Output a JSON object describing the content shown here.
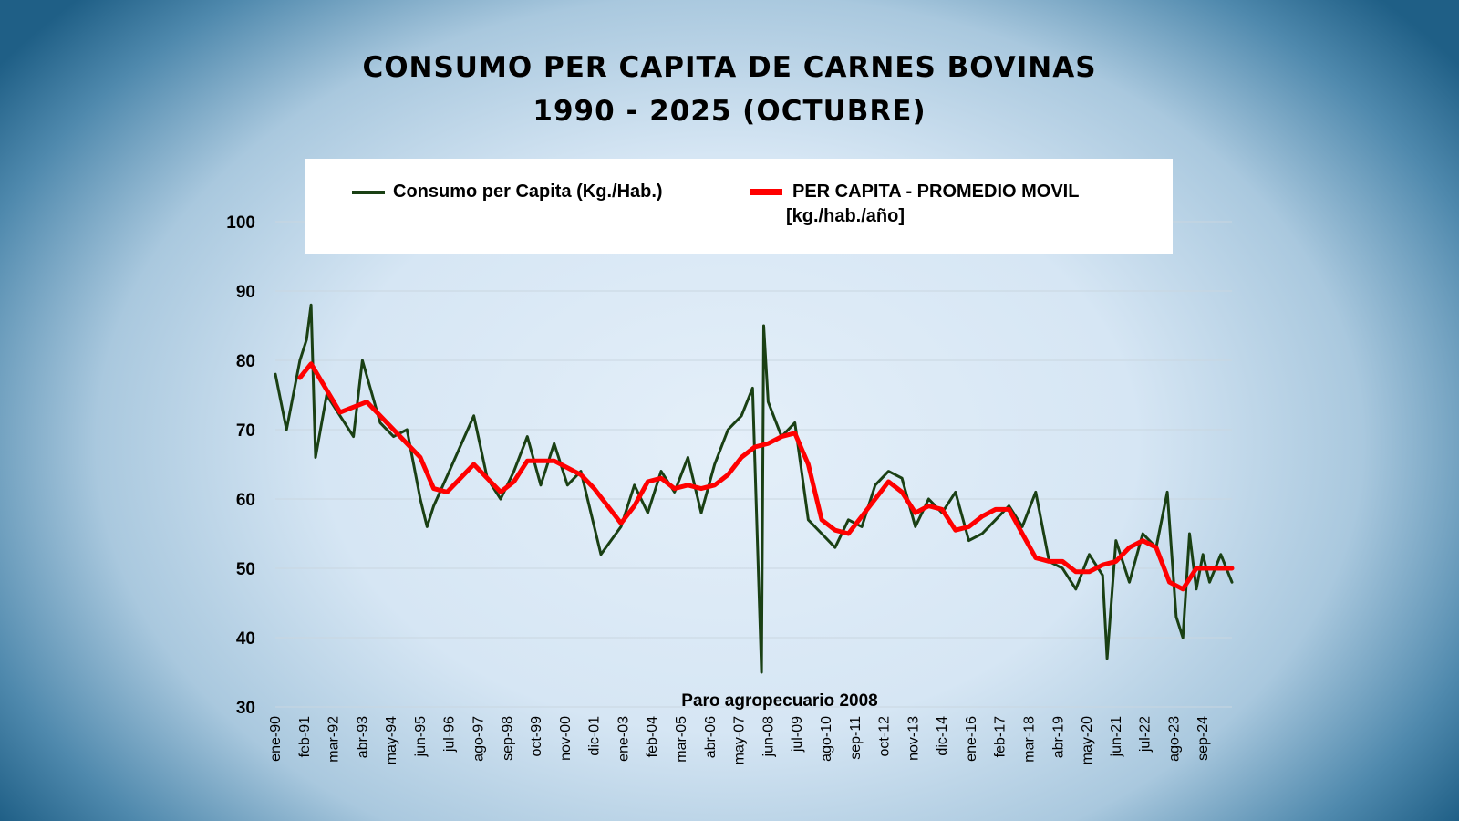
{
  "chart_data": {
    "type": "line",
    "title": "CONSUMO PER CAPITA DE CARNES BOVINAS",
    "subtitle": "1990 - 2025 (OCTUBRE)",
    "xlabel": "",
    "ylabel": "",
    "ylim": [
      30,
      100
    ],
    "yticks": [
      30,
      40,
      50,
      60,
      70,
      80,
      90,
      100
    ],
    "x_start": "ene-90",
    "x_end": "oct-25",
    "x_tick_labels": [
      "ene-90",
      "feb-91",
      "mar-92",
      "abr-93",
      "may-94",
      "jun-95",
      "jul-96",
      "ago-97",
      "sep-98",
      "oct-99",
      "nov-00",
      "dic-01",
      "ene-03",
      "feb-04",
      "mar-05",
      "abr-06",
      "may-07",
      "jun-08",
      "jul-09",
      "ago-10",
      "sep-11",
      "oct-12",
      "nov-13",
      "dic-14",
      "ene-16",
      "feb-17",
      "mar-18",
      "abr-19",
      "may-20",
      "jun-21",
      "jul-22",
      "ago-23",
      "sep-24"
    ],
    "grid": "horizontal",
    "legend_position": "top",
    "annotation": "Paro agropecuario 2008",
    "series": [
      {
        "name": "Consumo per Capita (Kg./Hab.)",
        "color": "#1a4014",
        "description_points": [
          [
            "ene-90",
            78
          ],
          [
            "jun-90",
            70
          ],
          [
            "dic-90",
            80
          ],
          [
            "mar-91",
            83
          ],
          [
            "may-91",
            88
          ],
          [
            "jul-91",
            66
          ],
          [
            "dic-91",
            75
          ],
          [
            "jun-92",
            72
          ],
          [
            "dic-92",
            69
          ],
          [
            "abr-93",
            80
          ],
          [
            "dic-93",
            71
          ],
          [
            "jun-94",
            69
          ],
          [
            "dic-94",
            70
          ],
          [
            "jun-95",
            60
          ],
          [
            "sep-95",
            56
          ],
          [
            "dic-95",
            59
          ],
          [
            "jul-96",
            64
          ],
          [
            "jun-97",
            72
          ],
          [
            "dic-97",
            63
          ],
          [
            "jun-98",
            60
          ],
          [
            "dic-98",
            64
          ],
          [
            "jun-99",
            69
          ],
          [
            "dic-99",
            62
          ],
          [
            "jun-00",
            68
          ],
          [
            "dic-00",
            62
          ],
          [
            "jun-01",
            64
          ],
          [
            "mar-02",
            52
          ],
          [
            "dic-02",
            56
          ],
          [
            "jun-03",
            62
          ],
          [
            "dic-03",
            58
          ],
          [
            "jun-04",
            64
          ],
          [
            "dic-04",
            61
          ],
          [
            "jun-05",
            66
          ],
          [
            "dic-05",
            58
          ],
          [
            "jun-06",
            65
          ],
          [
            "dic-06",
            70
          ],
          [
            "jun-07",
            72
          ],
          [
            "nov-07",
            76
          ],
          [
            "mar-08",
            35
          ],
          [
            "abr-08",
            85
          ],
          [
            "jun-08",
            74
          ],
          [
            "dic-08",
            69
          ],
          [
            "jun-09",
            71
          ],
          [
            "dic-09",
            57
          ],
          [
            "jun-10",
            55
          ],
          [
            "dic-10",
            53
          ],
          [
            "jun-11",
            57
          ],
          [
            "dic-11",
            56
          ],
          [
            "jun-12",
            62
          ],
          [
            "dic-12",
            64
          ],
          [
            "jun-13",
            63
          ],
          [
            "dic-13",
            56
          ],
          [
            "jun-14",
            60
          ],
          [
            "dic-14",
            58
          ],
          [
            "jun-15",
            61
          ],
          [
            "dic-15",
            54
          ],
          [
            "jun-16",
            55
          ],
          [
            "dic-16",
            57
          ],
          [
            "jun-17",
            59
          ],
          [
            "dic-17",
            56
          ],
          [
            "jun-18",
            61
          ],
          [
            "dic-18",
            51
          ],
          [
            "jun-19",
            50
          ],
          [
            "dic-19",
            47
          ],
          [
            "jun-20",
            52
          ],
          [
            "dic-20",
            49
          ],
          [
            "feb-21",
            37
          ],
          [
            "jun-21",
            54
          ],
          [
            "dic-21",
            48
          ],
          [
            "jun-22",
            55
          ],
          [
            "dic-22",
            53
          ],
          [
            "may-23",
            61
          ],
          [
            "sep-23",
            43
          ],
          [
            "dic-23",
            40
          ],
          [
            "mar-24",
            55
          ],
          [
            "jun-24",
            47
          ],
          [
            "sep-24",
            52
          ],
          [
            "dic-24",
            48
          ],
          [
            "may-25",
            52
          ],
          [
            "oct-25",
            48
          ]
        ]
      },
      {
        "name": "PER CAPITA - PROMEDIO MOVIL",
        "name_line2": "[kg./hab./año]",
        "color": "#ff0000",
        "description_points": [
          [
            "dic-90",
            77.5
          ],
          [
            "may-91",
            79.5
          ],
          [
            "jun-92",
            72.5
          ],
          [
            "jun-93",
            74
          ],
          [
            "jun-94",
            70
          ],
          [
            "jun-95",
            66
          ],
          [
            "dic-95",
            61.5
          ],
          [
            "jun-96",
            61
          ],
          [
            "jun-97",
            65
          ],
          [
            "jun-98",
            61
          ],
          [
            "dic-98",
            62.5
          ],
          [
            "jun-99",
            65.5
          ],
          [
            "jun-00",
            65.5
          ],
          [
            "jun-01",
            63.5
          ],
          [
            "dic-01",
            61.5
          ],
          [
            "dic-02",
            56.5
          ],
          [
            "jun-03",
            59
          ],
          [
            "dic-03",
            62.5
          ],
          [
            "jun-04",
            63
          ],
          [
            "dic-04",
            61.5
          ],
          [
            "jun-05",
            62
          ],
          [
            "dic-05",
            61.5
          ],
          [
            "jun-06",
            62
          ],
          [
            "dic-06",
            63.5
          ],
          [
            "jun-07",
            66
          ],
          [
            "dic-07",
            67.5
          ],
          [
            "jun-08",
            68
          ],
          [
            "dic-08",
            69
          ],
          [
            "jun-09",
            69.5
          ],
          [
            "dic-09",
            65
          ],
          [
            "jun-10",
            57
          ],
          [
            "dic-10",
            55.5
          ],
          [
            "jun-11",
            55
          ],
          [
            "dic-11",
            57.5
          ],
          [
            "jun-12",
            60
          ],
          [
            "dic-12",
            62.5
          ],
          [
            "jun-13",
            61
          ],
          [
            "dic-13",
            58
          ],
          [
            "jun-14",
            59
          ],
          [
            "dic-14",
            58.5
          ],
          [
            "jun-15",
            55.5
          ],
          [
            "dic-15",
            56
          ],
          [
            "jun-16",
            57.5
          ],
          [
            "dic-16",
            58.5
          ],
          [
            "jun-17",
            58.5
          ],
          [
            "dic-17",
            55
          ],
          [
            "jun-18",
            51.5
          ],
          [
            "dic-18",
            51
          ],
          [
            "jun-19",
            51
          ],
          [
            "dic-19",
            49.5
          ],
          [
            "jun-20",
            49.5
          ],
          [
            "dic-20",
            50.5
          ],
          [
            "jun-21",
            51
          ],
          [
            "dic-21",
            53
          ],
          [
            "jun-22",
            54
          ],
          [
            "dic-22",
            53
          ],
          [
            "jun-23",
            48
          ],
          [
            "dic-23",
            47
          ],
          [
            "jun-24",
            50
          ],
          [
            "oct-25",
            50
          ]
        ]
      }
    ]
  }
}
